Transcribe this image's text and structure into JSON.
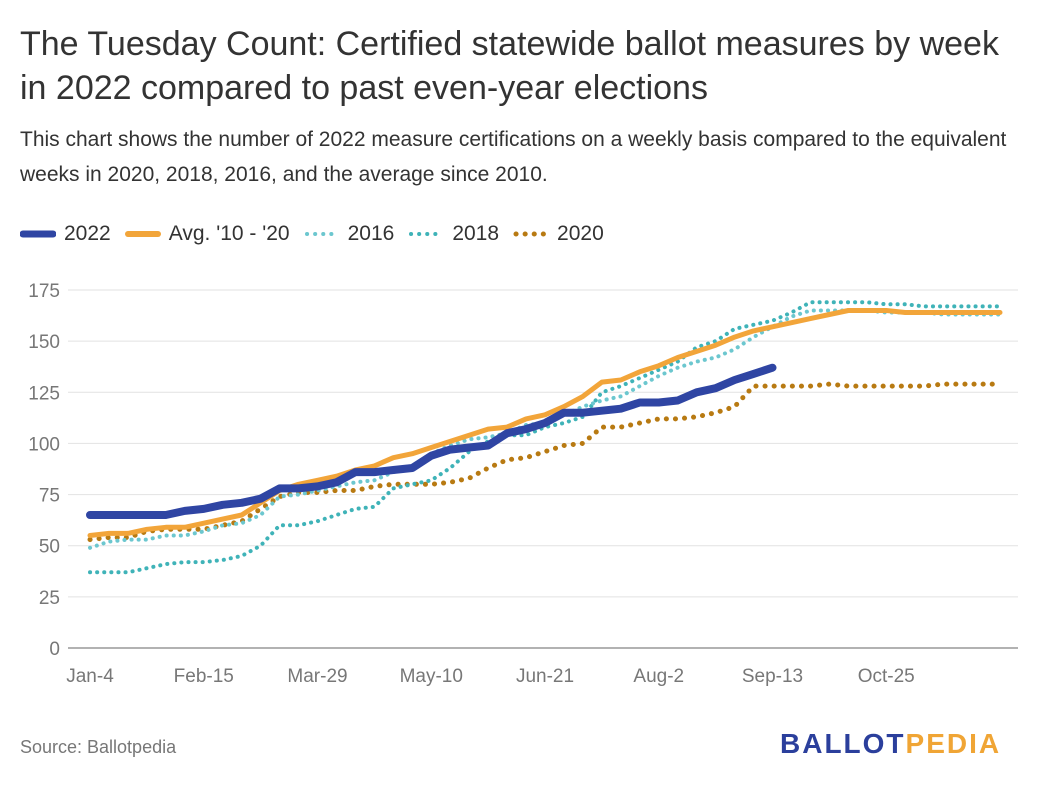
{
  "title": "The Tuesday Count: Certified statewide ballot measures by week in 2022 compared to past even-year elections",
  "subtitle": "This chart shows the number of 2022 measure certifications on a weekly basis compared to the equivalent weeks in 2020, 2018, 2016, and the average since 2010.",
  "source": "Source: Ballotpedia",
  "logo": {
    "part1": "BALLOT",
    "part2": "PEDIA"
  },
  "colors": {
    "brand_blue": "#2b3f9c",
    "brand_orange": "#f0a535"
  },
  "chart_data": {
    "type": "line",
    "title": "The Tuesday Count: Certified statewide ballot measures by week in 2022 compared to past even-year elections",
    "xlabel": "",
    "ylabel": "",
    "ylim": [
      0,
      175
    ],
    "yticks": [
      0,
      25,
      50,
      75,
      100,
      125,
      150,
      175
    ],
    "xticks": [
      "Jan-4",
      "Feb-15",
      "Mar-29",
      "May-10",
      "Jun-21",
      "Aug-2",
      "Sep-13",
      "Oct-25"
    ],
    "x_start": "Jan-4",
    "x_step_days": 7,
    "grid": "horizontal",
    "legend_position": "top-left",
    "series": [
      {
        "name": "2022",
        "color": "#2f45a3",
        "style": "solid-thick",
        "values": [
          65,
          65,
          65,
          65,
          65,
          67,
          68,
          70,
          71,
          73,
          78,
          78,
          79,
          81,
          86,
          86,
          87,
          88,
          94,
          97,
          98,
          99,
          105,
          107,
          110,
          115,
          115,
          116,
          117,
          120,
          120,
          121,
          125,
          127,
          131,
          134,
          137
        ]
      },
      {
        "name": "Avg. '10 - '20",
        "color": "#f2a53a",
        "style": "solid",
        "values": [
          55,
          56,
          56,
          58,
          59,
          59,
          61,
          63,
          65,
          71,
          77,
          80,
          82,
          84,
          87,
          89,
          93,
          95,
          98,
          101,
          104,
          107,
          108,
          112,
          114,
          118,
          123,
          130,
          131,
          135,
          138,
          142,
          145,
          148,
          152,
          155,
          157,
          159,
          161,
          163,
          165,
          165,
          165,
          164,
          164,
          164,
          164,
          164,
          164
        ]
      },
      {
        "name": "2016",
        "color": "#6cc7cf",
        "style": "dotted",
        "values": [
          49,
          52,
          53,
          53,
          55,
          55,
          57,
          60,
          61,
          65,
          74,
          75,
          77,
          79,
          81,
          82,
          86,
          88,
          95,
          99,
          102,
          103,
          105,
          109,
          110,
          114,
          118,
          121,
          123,
          128,
          133,
          137,
          140,
          142,
          146,
          152,
          157,
          162,
          165,
          165,
          165,
          165,
          164,
          164,
          164,
          163,
          163,
          163,
          163
        ]
      },
      {
        "name": "2018",
        "color": "#3fb3b8",
        "style": "dotted",
        "values": [
          37,
          37,
          37,
          39,
          41,
          42,
          42,
          43,
          45,
          50,
          60,
          60,
          62,
          65,
          68,
          69,
          78,
          80,
          82,
          88,
          96,
          101,
          104,
          104,
          108,
          110,
          113,
          125,
          128,
          132,
          136,
          140,
          147,
          150,
          156,
          158,
          160,
          164,
          169,
          169,
          169,
          169,
          168,
          168,
          167,
          167,
          167,
          167,
          167
        ]
      },
      {
        "name": "2020",
        "color": "#b87a12",
        "style": "dotted",
        "values": [
          53,
          54,
          54,
          57,
          58,
          58,
          58,
          60,
          62,
          68,
          74,
          76,
          76,
          77,
          77,
          79,
          80,
          80,
          80,
          81,
          83,
          88,
          92,
          93,
          96,
          99,
          100,
          108,
          108,
          110,
          112,
          112,
          113,
          115,
          118,
          128,
          128,
          128,
          128,
          129,
          128,
          128,
          128,
          128,
          128,
          129,
          129,
          129,
          129
        ]
      }
    ]
  }
}
